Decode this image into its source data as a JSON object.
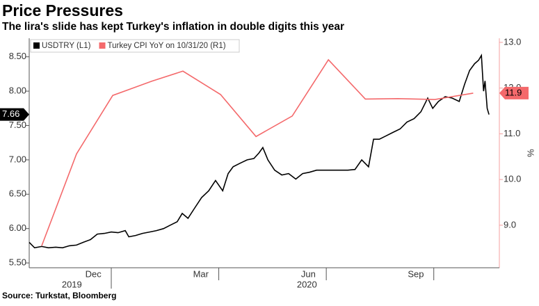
{
  "chart_data": {
    "type": "line",
    "title": "Price Pressures",
    "subtitle": "The lira's slide has kept Turkey's inflation in double digits this year",
    "source": "Source: Turkstat, Bloomberg",
    "y2_label": "%",
    "xlim": [
      -2.29,
      10.83
    ],
    "xticks": [
      {
        "value": -0.5,
        "label": "Dec"
      },
      {
        "value": 2.5,
        "label": "Mar"
      },
      {
        "value": 5.5,
        "label": "Jun"
      },
      {
        "value": 8.5,
        "label": "Sep"
      }
    ],
    "x_minor_ticks": [
      0,
      3,
      6,
      9
    ],
    "x_year_ticks": [
      {
        "value": -1.1,
        "label": "2019"
      },
      {
        "value": 5.46,
        "label": "2020"
      }
    ],
    "ylim": [
      5.43,
      8.77
    ],
    "yticks": [
      {
        "value": 5.5,
        "label": "5.50"
      },
      {
        "value": 6,
        "label": "6.00"
      },
      {
        "value": 6.5,
        "label": "6.50"
      },
      {
        "value": 7,
        "label": "7.00"
      },
      {
        "value": 7.5,
        "label": "7.50"
      },
      {
        "value": 8,
        "label": "8.00"
      },
      {
        "value": 8.5,
        "label": "8.50"
      }
    ],
    "y2lim": [
      8.07,
      13.09
    ],
    "y2ticks": [
      {
        "value": 9,
        "label": "9.0"
      },
      {
        "value": 10,
        "label": "10.0"
      },
      {
        "value": 11,
        "label": "11.0"
      },
      {
        "value": 12,
        "label": "12.0"
      },
      {
        "value": 13,
        "label": "13.0"
      }
    ],
    "legend": "top-left",
    "series": [
      {
        "name": "USDTRY (L1)",
        "color": "#000000",
        "last_label": "7.66",
        "x": [
          -2.29,
          -2.14,
          -1.94,
          -1.75,
          -1.55,
          -1.36,
          -1.17,
          -0.97,
          -0.78,
          -0.58,
          -0.39,
          -0.19,
          0,
          0.19,
          0.39,
          0.49,
          0.68,
          0.87,
          1.07,
          1.26,
          1.46,
          1.65,
          1.84,
          1.98,
          2.14,
          2.33,
          2.52,
          2.72,
          2.91,
          3.11,
          3.26,
          3.4,
          3.59,
          3.79,
          3.98,
          4.12,
          4.23,
          4.37,
          4.56,
          4.76,
          4.95,
          5.15,
          5.34,
          5.53,
          5.73,
          6.02,
          6.31,
          6.6,
          6.8,
          6.99,
          7.18,
          7.32,
          7.48,
          7.67,
          7.86,
          8.06,
          8.25,
          8.45,
          8.64,
          8.83,
          8.97,
          9.13,
          9.32,
          9.51,
          9.71,
          9.86,
          10.0,
          10.14,
          10.25,
          10.33,
          10.39,
          10.43,
          10.49,
          10.54
        ],
        "values": [
          5.8,
          5.72,
          5.74,
          5.72,
          5.73,
          5.72,
          5.75,
          5.76,
          5.8,
          5.84,
          5.92,
          5.93,
          5.95,
          5.94,
          5.97,
          5.88,
          5.9,
          5.93,
          5.95,
          5.97,
          6.0,
          6.05,
          6.1,
          6.22,
          6.15,
          6.3,
          6.45,
          6.55,
          6.7,
          6.55,
          6.8,
          6.9,
          6.95,
          7.0,
          7.02,
          7.1,
          7.18,
          7.0,
          6.85,
          6.78,
          6.8,
          6.72,
          6.8,
          6.82,
          6.85,
          6.85,
          6.85,
          6.85,
          6.86,
          7.0,
          6.9,
          7.3,
          7.3,
          7.35,
          7.4,
          7.45,
          7.55,
          7.6,
          7.7,
          7.9,
          7.75,
          7.85,
          7.92,
          7.9,
          7.85,
          8.1,
          8.3,
          8.4,
          8.45,
          8.52,
          8.0,
          8.15,
          7.75,
          7.66
        ]
      },
      {
        "name": "Turkey CPI YoY on 10/31/20 (R1)",
        "color": "#f4696b",
        "axis": "y2",
        "last_label": "11.9",
        "x": [
          -1.94,
          -0.97,
          0.04,
          1.13,
          2.0,
          3.05,
          4.04,
          5.05,
          6.06,
          7.09,
          8.0,
          9.03,
          10.1
        ],
        "values": [
          8.55,
          10.56,
          11.84,
          12.15,
          12.37,
          11.86,
          10.94,
          11.39,
          12.62,
          11.76,
          11.77,
          11.75,
          11.89
        ]
      }
    ]
  }
}
